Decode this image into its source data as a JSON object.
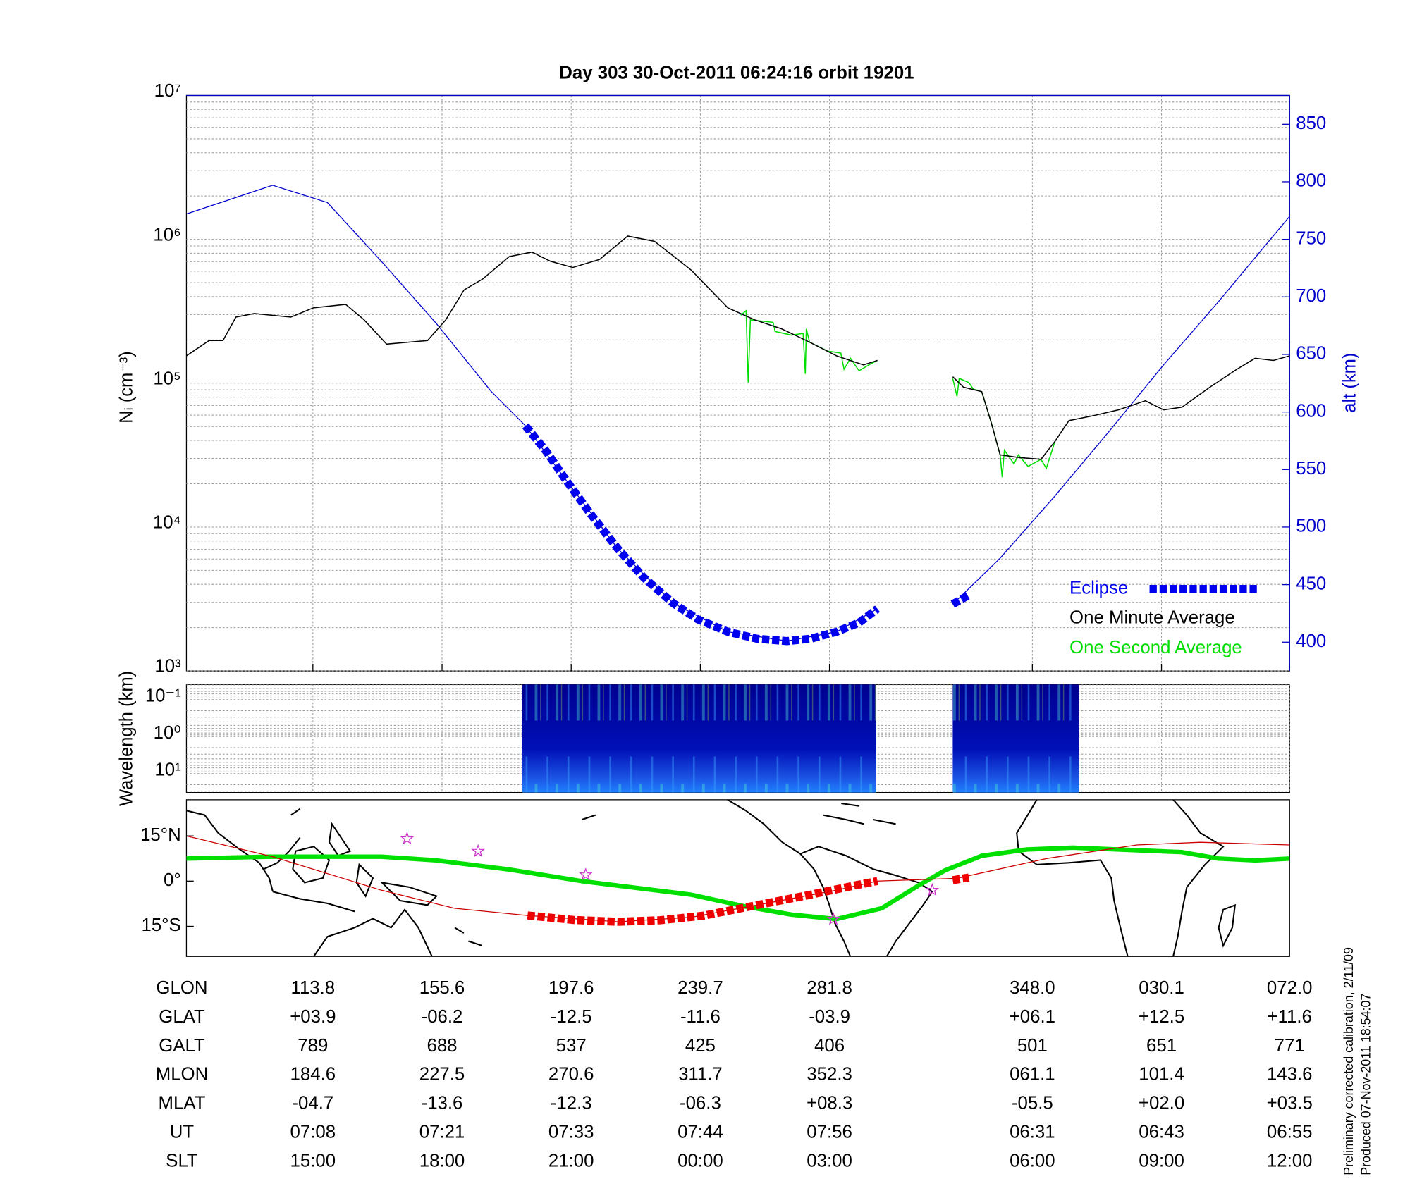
{
  "chart_data": [
    {
      "type": "line",
      "title": "Day 303  30-Oct-2011 06:24:16   orbit 19201",
      "y_label": "Nᵢ (cm⁻³)",
      "y2_label": "alt (km)",
      "xlim": [
        0,
        102.5
      ],
      "xticks": [
        11.75,
        23.75,
        35.75,
        47.75,
        59.75,
        78.6,
        90.6,
        102.5
      ],
      "ylim": [
        1000,
        10000000
      ],
      "log_y": true,
      "yticks": [
        {
          "value": 1000,
          "label": "10³"
        },
        {
          "value": 10000,
          "label": "10⁴"
        },
        {
          "value": 100000,
          "label": "10⁵"
        },
        {
          "value": 1000000,
          "label": "10⁶"
        },
        {
          "value": 10000000,
          "label": "10⁷"
        }
      ],
      "y2lim": [
        375,
        875
      ],
      "y2ticks": [
        400,
        450,
        500,
        550,
        600,
        650,
        700,
        750,
        800,
        850
      ],
      "y2_color": "#0000cc",
      "grid": true,
      "legend": "lower right",
      "series": [
        {
          "name": "Eclipse",
          "color": "#0000ee",
          "axis": "y2",
          "marker": "square",
          "x": [
            31.5,
            33.5,
            35.1,
            37.5,
            40.1,
            42.5,
            45.2,
            47.5,
            50.3,
            53,
            55.8,
            58,
            60.4,
            62.5,
            64.2,
            null,
            71.2,
            72.7
          ],
          "values": [
            588,
            565,
            543,
            512,
            481,
            456,
            434,
            420,
            409,
            403,
            401,
            403,
            409,
            417,
            429,
            null,
            433,
            441
          ]
        },
        {
          "name": "One Minute Average",
          "color": "#000000",
          "x": [
            0,
            2.1,
            3.4,
            4.6,
            6.3,
            9.7,
            11.8,
            14.8,
            16.5,
            18.6,
            20.7,
            22.4,
            24.1,
            25.8,
            27.5,
            30.0,
            32.1,
            33.8,
            35.9,
            38.4,
            41.0,
            43.5,
            46.9,
            50.3,
            52.8,
            55.3,
            57.9,
            60.4,
            62.9,
            64.2,
            null,
            71.2,
            72.2,
            73.9,
            74.8,
            75.6,
            77.3,
            79.4,
            80.7,
            82.0,
            84.1,
            86.6,
            89.1,
            90.8,
            92.5,
            95.1,
            97.6,
            99.3,
            101.0,
            102.5
          ],
          "values": [
            155000,
            198000,
            198000,
            288000,
            305000,
            288000,
            334000,
            353000,
            276000,
            187000,
            193000,
            198000,
            276000,
            445000,
            528000,
            759000,
            815000,
            705000,
            637000,
            726000,
            1054000,
            968000,
            611000,
            334000,
            276000,
            239000,
            193000,
            155000,
            134000,
            144000,
            null,
            111000,
            93800,
            87300,
            52600,
            31800,
            30500,
            29600,
            39400,
            55000,
            59100,
            65300,
            75500,
            65300,
            68200,
            93800,
            125000,
            149000,
            144000,
            155000
          ]
        },
        {
          "name": "One Second Average",
          "color": "#00dd00",
          "x": [
            51.5,
            52.0,
            52.2,
            52.4,
            54.5,
            54.7,
            56.2,
            57.3,
            57.5,
            57.6,
            57.9,
            59.6,
            60.8,
            61.1,
            61.7,
            62.5,
            63.4,
            64.2,
            null,
            71.2,
            71.6,
            71.8,
            72.7,
            73.1,
            73.9,
            74.8,
            75.6,
            75.8,
            76.0,
            76.9,
            77.3,
            78.2,
            79.4,
            79.9,
            80.7
          ],
          "values": [
            297000,
            319000,
            101000,
            276000,
            265000,
            229000,
            216000,
            222000,
            116000,
            239000,
            193000,
            167000,
            162000,
            125000,
            149000,
            122000,
            134000,
            144000,
            null,
            108000,
            81100,
            108000,
            101000,
            91000,
            87300,
            52600,
            31800,
            22200,
            34200,
            27500,
            31800,
            26400,
            29600,
            25600,
            39400
          ]
        },
        {
          "color": "#0000cc",
          "axis": "y2",
          "x": [
            0,
            8.0,
            13.1,
            18.1,
            23.2,
            28.3,
            31.5,
            35.1,
            40.1,
            45.2,
            50.3,
            55.8,
            60.4,
            64.2,
            null,
            71.2,
            75.6,
            80.7,
            85.8,
            90.8,
            95.9,
            102.5
          ],
          "values": [
            772,
            797,
            782,
            731,
            677,
            618,
            588,
            543,
            481,
            434,
            409,
            401,
            409,
            429,
            null,
            433,
            473,
            527,
            584,
            641,
            696,
            770
          ]
        }
      ]
    },
    {
      "type": "spectrogram",
      "y_label": "Wavelength (km)",
      "ylim": [
        32.6,
        0.039
      ],
      "log_y": true,
      "yticks": [
        {
          "value": 0.1,
          "label": "10⁻¹"
        },
        {
          "value": 1,
          "label": "10⁰"
        },
        {
          "value": 10,
          "label": "10¹"
        }
      ],
      "grid": true,
      "segments": [
        {
          "x": [
            31.2,
            64.1
          ]
        },
        {
          "x": [
            71.2,
            82.9
          ]
        }
      ]
    },
    {
      "type": "map",
      "ylim": [
        -25,
        27
      ],
      "yticks": [
        {
          "value": 15,
          "label": "15°N"
        },
        {
          "value": 0,
          "label": "0°"
        },
        {
          "value": -15,
          "label": "15°S"
        }
      ],
      "series": [
        {
          "color": "#00e000",
          "width": 5,
          "x": [
            0,
            8.0,
            18.1,
            23.2,
            29.9,
            36.7,
            46.9,
            51.9,
            56.2,
            60.4,
            64.6,
            68.0,
            70.5,
            73.9,
            78.1,
            82.4,
            86.6,
            92.5,
            95.9,
            99.3,
            102.5
          ],
          "values": [
            7.5,
            8.1,
            8.1,
            6.9,
            3.9,
            0,
            -4.5,
            -8.4,
            -11.1,
            -12.6,
            -9,
            -1.5,
            3.6,
            8.4,
            10.5,
            11.1,
            10.5,
            9.6,
            7.5,
            6.9,
            7.5
          ]
        },
        {
          "color": "#cc0000",
          "width": 1,
          "x": [
            0,
            8.0,
            18.1,
            24.9,
            31.7,
            40.1,
            46.9,
            53.7,
            60.4,
            64.2,
            71.6,
            79.9,
            88.3,
            94.2,
            102.5
          ],
          "values": [
            15,
            8.1,
            -3,
            -9,
            -11.4,
            -13.5,
            -12,
            -7.5,
            -3,
            0,
            0.9,
            7.5,
            12,
            12.9,
            12
          ]
        },
        {
          "color": "#ee0000",
          "marker": "square",
          "x": [
            31.7,
            36,
            40.1,
            44,
            48,
            53.7,
            58,
            62,
            64.2,
            null,
            71.2,
            72.7
          ],
          "values": [
            -11.4,
            -12.9,
            -13.5,
            -13,
            -11.5,
            -7.5,
            -4.5,
            -1.5,
            0,
            null,
            0.3,
            1.2
          ]
        },
        {
          "color": "#cc33cc",
          "marker": "star",
          "x": [
            20.5,
            27.1,
            37.1,
            69.3,
            60.1
          ],
          "values": [
            14.1,
            9.9,
            2.1,
            -3,
            -12.6
          ]
        }
      ]
    }
  ],
  "table": {
    "rows": [
      {
        "label": "GLON",
        "cells": [
          "113.8",
          "155.6",
          "197.6",
          "239.7",
          "281.8",
          "348.0",
          "030.1",
          "072.0"
        ]
      },
      {
        "label": "GLAT",
        "cells": [
          "+03.9",
          "-06.2",
          "-12.5",
          "-11.6",
          "-03.9",
          "+06.1",
          "+12.5",
          "+11.6"
        ]
      },
      {
        "label": "GALT",
        "cells": [
          "789",
          "688",
          "537",
          "425",
          "406",
          "501",
          "651",
          "771"
        ]
      },
      {
        "label": "MLON",
        "cells": [
          "184.6",
          "227.5",
          "270.6",
          "311.7",
          "352.3",
          "061.1",
          "101.4",
          "143.6"
        ]
      },
      {
        "label": "MLAT",
        "cells": [
          "-04.7",
          "-13.6",
          "-12.3",
          "-06.3",
          "+08.3",
          "-05.5",
          "+02.0",
          "+03.5"
        ]
      },
      {
        "label": "UT",
        "cells": [
          "07:08",
          "07:21",
          "07:33",
          "07:44",
          "07:56",
          "06:31",
          "06:43",
          "06:55"
        ]
      },
      {
        "label": "SLT",
        "cells": [
          "15:00",
          "18:00",
          "21:00",
          "00:00",
          "03:00",
          "06:00",
          "09:00",
          "12:00"
        ]
      }
    ]
  },
  "notes": [
    "Preliminary corrected calibration, 2/11/09",
    "Produced 07-Nov-2011 18:54:07"
  ]
}
